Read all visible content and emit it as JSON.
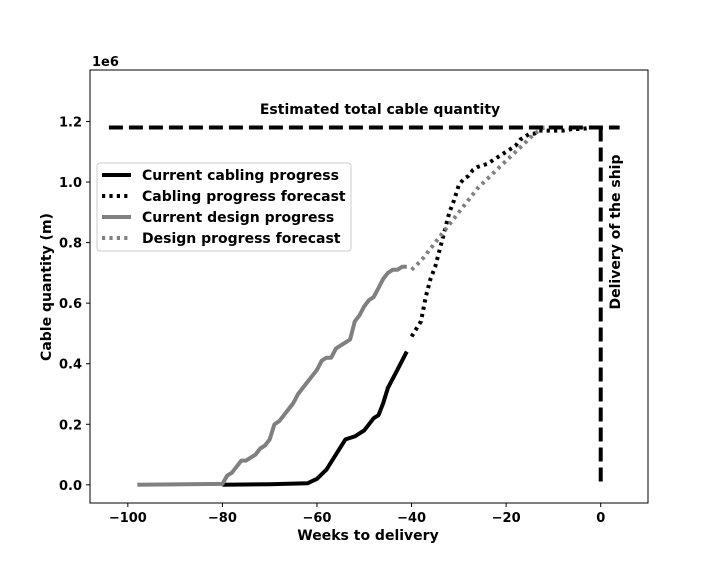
{
  "chart_data": {
    "type": "line",
    "xlabel": "Weeks to delivery",
    "ylabel": "Cable quantity (m)",
    "y_offset_text": "1e6",
    "xlim": [
      -108,
      10
    ],
    "ylim": [
      -0.06,
      1.37
    ],
    "x_ticks": [
      -100,
      -80,
      -60,
      -40,
      -20,
      0
    ],
    "x_tick_labels": [
      "−100",
      "−80",
      "−60",
      "−40",
      "−20",
      "0"
    ],
    "y_ticks": [
      0.0,
      0.2,
      0.4,
      0.6,
      0.8,
      1.0,
      1.2
    ],
    "y_tick_labels": [
      "0.0",
      "0.2",
      "0.4",
      "0.6",
      "0.8",
      "1.0",
      "1.2"
    ],
    "grid": false,
    "legend_position": "upper-left",
    "colors": {
      "black": "#000000",
      "gray": "#808080"
    },
    "series": [
      {
        "name": "Current cabling progress",
        "color": "#000000",
        "style": "solid",
        "x": [
          -80,
          -70,
          -62,
          -60,
          -58,
          -56,
          -54,
          -52,
          -50,
          -48,
          -47,
          -46,
          -45,
          -44,
          -43,
          -42,
          -41
        ],
        "y": [
          0.0,
          0.002,
          0.005,
          0.02,
          0.05,
          0.1,
          0.15,
          0.16,
          0.18,
          0.22,
          0.23,
          0.27,
          0.32,
          0.35,
          0.38,
          0.41,
          0.44
        ]
      },
      {
        "name": "Cabling progress forecast",
        "color": "#000000",
        "style": "dotted",
        "x": [
          -40,
          -38,
          -37,
          -36,
          -35,
          -34,
          -33,
          -32,
          -31,
          -30,
          -29,
          -28,
          -27,
          -26,
          -24,
          -22,
          -20,
          -18,
          -17,
          -16,
          -15,
          -14,
          -13,
          -12,
          -10,
          -8,
          -6,
          -4,
          -2,
          0
        ],
        "y": [
          0.49,
          0.54,
          0.62,
          0.68,
          0.72,
          0.78,
          0.84,
          0.9,
          0.94,
          0.99,
          1.01,
          1.02,
          1.04,
          1.05,
          1.06,
          1.08,
          1.1,
          1.12,
          1.14,
          1.15,
          1.16,
          1.16,
          1.17,
          1.17,
          1.17,
          1.17,
          1.175,
          1.175,
          1.18,
          1.18
        ]
      },
      {
        "name": "Current design progress",
        "color": "#808080",
        "style": "solid",
        "x": [
          -98,
          -80,
          -79,
          -78,
          -77,
          -76,
          -75,
          -74,
          -73,
          -72,
          -71,
          -70,
          -69,
          -68,
          -67,
          -66,
          -65,
          -64,
          -63,
          -62,
          -61,
          -60,
          -59,
          -58,
          -57,
          -56,
          -55,
          -54,
          -53,
          -52,
          -51,
          -50,
          -49,
          -48,
          -47,
          -46,
          -45,
          -44,
          -43,
          -42,
          -41
        ],
        "y": [
          0.0,
          0.003,
          0.03,
          0.04,
          0.06,
          0.08,
          0.08,
          0.09,
          0.1,
          0.12,
          0.13,
          0.15,
          0.2,
          0.21,
          0.23,
          0.25,
          0.27,
          0.3,
          0.32,
          0.34,
          0.36,
          0.38,
          0.41,
          0.42,
          0.42,
          0.45,
          0.46,
          0.47,
          0.48,
          0.54,
          0.56,
          0.59,
          0.61,
          0.62,
          0.65,
          0.68,
          0.7,
          0.71,
          0.71,
          0.72,
          0.72
        ]
      },
      {
        "name": "Design progress forecast",
        "color": "#808080",
        "style": "dotted",
        "x": [
          -40,
          -38,
          -36,
          -34,
          -32,
          -30,
          -28,
          -26,
          -24,
          -22,
          -20,
          -18,
          -16,
          -14,
          -13,
          -12,
          -11,
          -10
        ],
        "y": [
          0.71,
          0.74,
          0.78,
          0.82,
          0.86,
          0.9,
          0.94,
          0.98,
          1.01,
          1.04,
          1.07,
          1.1,
          1.13,
          1.16,
          1.17,
          1.18,
          1.18,
          1.18
        ]
      }
    ],
    "reference_lines": {
      "total": {
        "label": "Estimated total cable quantity",
        "y": 1.18,
        "x_range": [
          -104,
          4
        ]
      },
      "delivery": {
        "label": "Delivery of the ship",
        "x": 0,
        "y_range": [
          0,
          1.18
        ]
      }
    }
  }
}
